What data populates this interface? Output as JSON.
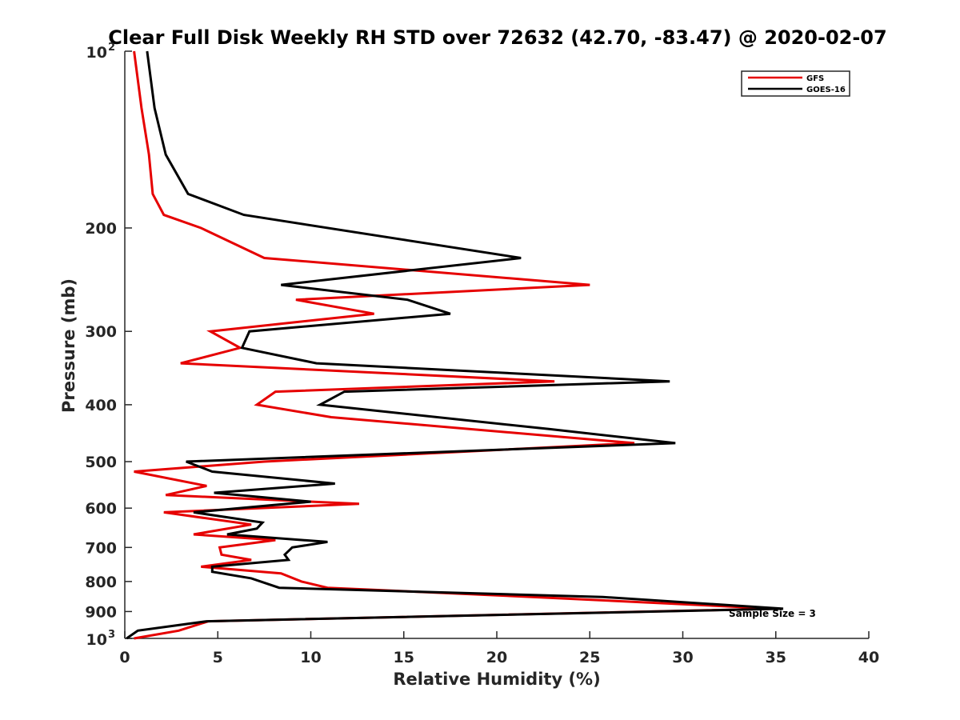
{
  "chart_data": {
    "type": "line",
    "title": "Clear Full Disk Weekly RH STD over 72632 (42.70, -83.47) @ 2020-02-07",
    "xlabel": "Relative Humidity (%)",
    "ylabel": "Pressure (mb)",
    "xlim": [
      0,
      40
    ],
    "ylim": [
      100,
      1000
    ],
    "y_scale": "log",
    "y_direction": "reversed",
    "x_ticks": [
      "0",
      "5",
      "10",
      "15",
      "20",
      "25",
      "30",
      "35",
      "40"
    ],
    "y_ticks": [
      {
        "value": 100,
        "base": "10",
        "exp": "2"
      },
      {
        "value": 200,
        "label": "200"
      },
      {
        "value": 300,
        "label": "300"
      },
      {
        "value": 400,
        "label": "400"
      },
      {
        "value": 500,
        "label": "500"
      },
      {
        "value": 600,
        "label": "600"
      },
      {
        "value": 700,
        "label": "700"
      },
      {
        "value": 800,
        "label": "800"
      },
      {
        "value": 900,
        "label": "900"
      },
      {
        "value": 1000,
        "base": "10",
        "exp": "3"
      }
    ],
    "grid": false,
    "legend_position": "top-right",
    "annotation": "Sample Size = 3",
    "series": [
      {
        "name": "GFS",
        "color": "#e60000",
        "points": [
          [
            0.5,
            100
          ],
          [
            0.9,
            125
          ],
          [
            1.3,
            150
          ],
          [
            1.5,
            175
          ],
          [
            2.1,
            190
          ],
          [
            4.1,
            200
          ],
          [
            7.5,
            225
          ],
          [
            25.0,
            250
          ],
          [
            9.2,
            265
          ],
          [
            13.4,
            280
          ],
          [
            4.6,
            300
          ],
          [
            6.2,
            320
          ],
          [
            3.0,
            340
          ],
          [
            23.1,
            365
          ],
          [
            8.1,
            380
          ],
          [
            7.1,
            400
          ],
          [
            11.1,
            420
          ],
          [
            27.4,
            465
          ],
          [
            7.5,
            500
          ],
          [
            0.5,
            520
          ],
          [
            4.4,
            550
          ],
          [
            2.2,
            570
          ],
          [
            12.6,
            590
          ],
          [
            2.1,
            610
          ],
          [
            6.8,
            640
          ],
          [
            3.7,
            665
          ],
          [
            8.1,
            680
          ],
          [
            5.1,
            700
          ],
          [
            5.2,
            720
          ],
          [
            6.8,
            735
          ],
          [
            4.1,
            755
          ],
          [
            8.4,
            775
          ],
          [
            9.5,
            800
          ],
          [
            10.9,
            820
          ],
          [
            21.9,
            850
          ],
          [
            35.0,
            890
          ],
          [
            4.5,
            935
          ],
          [
            2.9,
            970
          ],
          [
            0.5,
            1000
          ]
        ]
      },
      {
        "name": "GOES-16",
        "color": "#000000",
        "points": [
          [
            1.2,
            100
          ],
          [
            1.6,
            125
          ],
          [
            2.2,
            150
          ],
          [
            3.4,
            175
          ],
          [
            6.4,
            190
          ],
          [
            21.3,
            225
          ],
          [
            8.4,
            250
          ],
          [
            15.2,
            265
          ],
          [
            17.5,
            280
          ],
          [
            6.7,
            300
          ],
          [
            6.3,
            320
          ],
          [
            10.3,
            340
          ],
          [
            29.3,
            365
          ],
          [
            11.8,
            380
          ],
          [
            10.5,
            400
          ],
          [
            22.8,
            440
          ],
          [
            29.6,
            465
          ],
          [
            3.3,
            500
          ],
          [
            4.7,
            520
          ],
          [
            11.3,
            545
          ],
          [
            4.8,
            565
          ],
          [
            10.0,
            585
          ],
          [
            3.7,
            610
          ],
          [
            7.4,
            635
          ],
          [
            7.1,
            650
          ],
          [
            5.5,
            665
          ],
          [
            10.9,
            685
          ],
          [
            9.0,
            700
          ],
          [
            8.6,
            720
          ],
          [
            8.8,
            735
          ],
          [
            4.7,
            755
          ],
          [
            4.7,
            770
          ],
          [
            6.8,
            790
          ],
          [
            8.3,
            820
          ],
          [
            25.7,
            850
          ],
          [
            35.4,
            890
          ],
          [
            4.4,
            935
          ],
          [
            0.7,
            970
          ],
          [
            0.1,
            1000
          ]
        ]
      }
    ]
  }
}
